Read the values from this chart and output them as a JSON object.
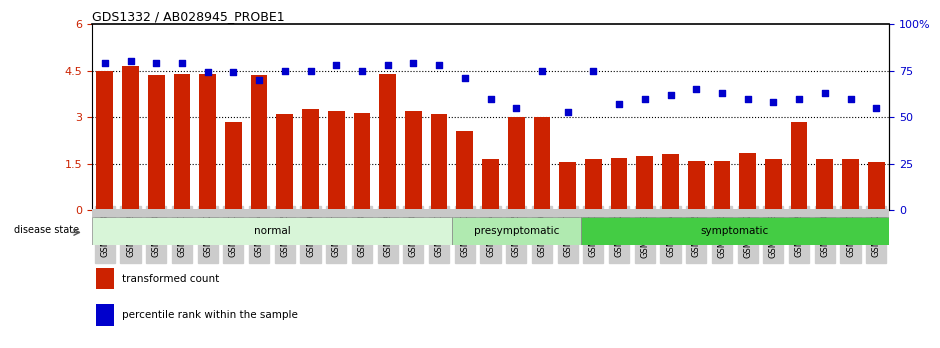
{
  "title": "GDS1332 / AB028945_PROBE1",
  "samples": [
    "GSM30698",
    "GSM30699",
    "GSM30700",
    "GSM30701",
    "GSM30702",
    "GSM30703",
    "GSM30704",
    "GSM30705",
    "GSM30706",
    "GSM30707",
    "GSM30708",
    "GSM30709",
    "GSM30710",
    "GSM30711",
    "GSM30693",
    "GSM30694",
    "GSM30695",
    "GSM30696",
    "GSM30697",
    "GSM30681",
    "GSM30682",
    "GSM30683",
    "GSM30684",
    "GSM30685",
    "GSM30686",
    "GSM30687",
    "GSM30688",
    "GSM30689",
    "GSM30690",
    "GSM30691",
    "GSM30692"
  ],
  "bar_values": [
    4.5,
    4.65,
    4.35,
    4.4,
    4.4,
    2.85,
    4.35,
    3.1,
    3.25,
    3.2,
    3.15,
    4.4,
    3.2,
    3.1,
    2.55,
    1.65,
    3.0,
    3.0,
    1.55,
    1.65,
    1.7,
    1.75,
    1.8,
    1.6,
    1.6,
    1.85,
    1.65,
    2.85,
    1.65,
    1.65,
    1.55
  ],
  "percentile_values": [
    79,
    80,
    79,
    79,
    74,
    74,
    70,
    75,
    75,
    78,
    75,
    78,
    79,
    78,
    71,
    60,
    55,
    75,
    53,
    75,
    57,
    60,
    62,
    65,
    63,
    60,
    58,
    60,
    63,
    60,
    55
  ],
  "groups": [
    {
      "label": "normal",
      "start": 0,
      "end": 13,
      "color": "#d8f5d8"
    },
    {
      "label": "presymptomatic",
      "start": 14,
      "end": 18,
      "color": "#b0eab0"
    },
    {
      "label": "symptomatic",
      "start": 19,
      "end": 30,
      "color": "#44cc44"
    }
  ],
  "bar_color": "#cc2200",
  "marker_color": "#0000cc",
  "ylim_left": [
    0,
    6
  ],
  "ylim_right": [
    0,
    100
  ],
  "yticks_left": [
    0,
    1.5,
    3.0,
    4.5,
    6.0
  ],
  "ytick_labels_left": [
    "0",
    "1.5",
    "3",
    "4.5",
    "6"
  ],
  "yticks_right": [
    0,
    25,
    50,
    75,
    100
  ],
  "ytick_labels_right": [
    "0",
    "25",
    "50",
    "75",
    "100%"
  ],
  "ylabel_left_color": "#cc2200",
  "ylabel_right_color": "#0000cc",
  "disease_state_label": "disease state",
  "legend_items": [
    {
      "label": "transformed count",
      "color": "#cc2200"
    },
    {
      "label": "percentile rank within the sample",
      "color": "#0000cc"
    }
  ]
}
